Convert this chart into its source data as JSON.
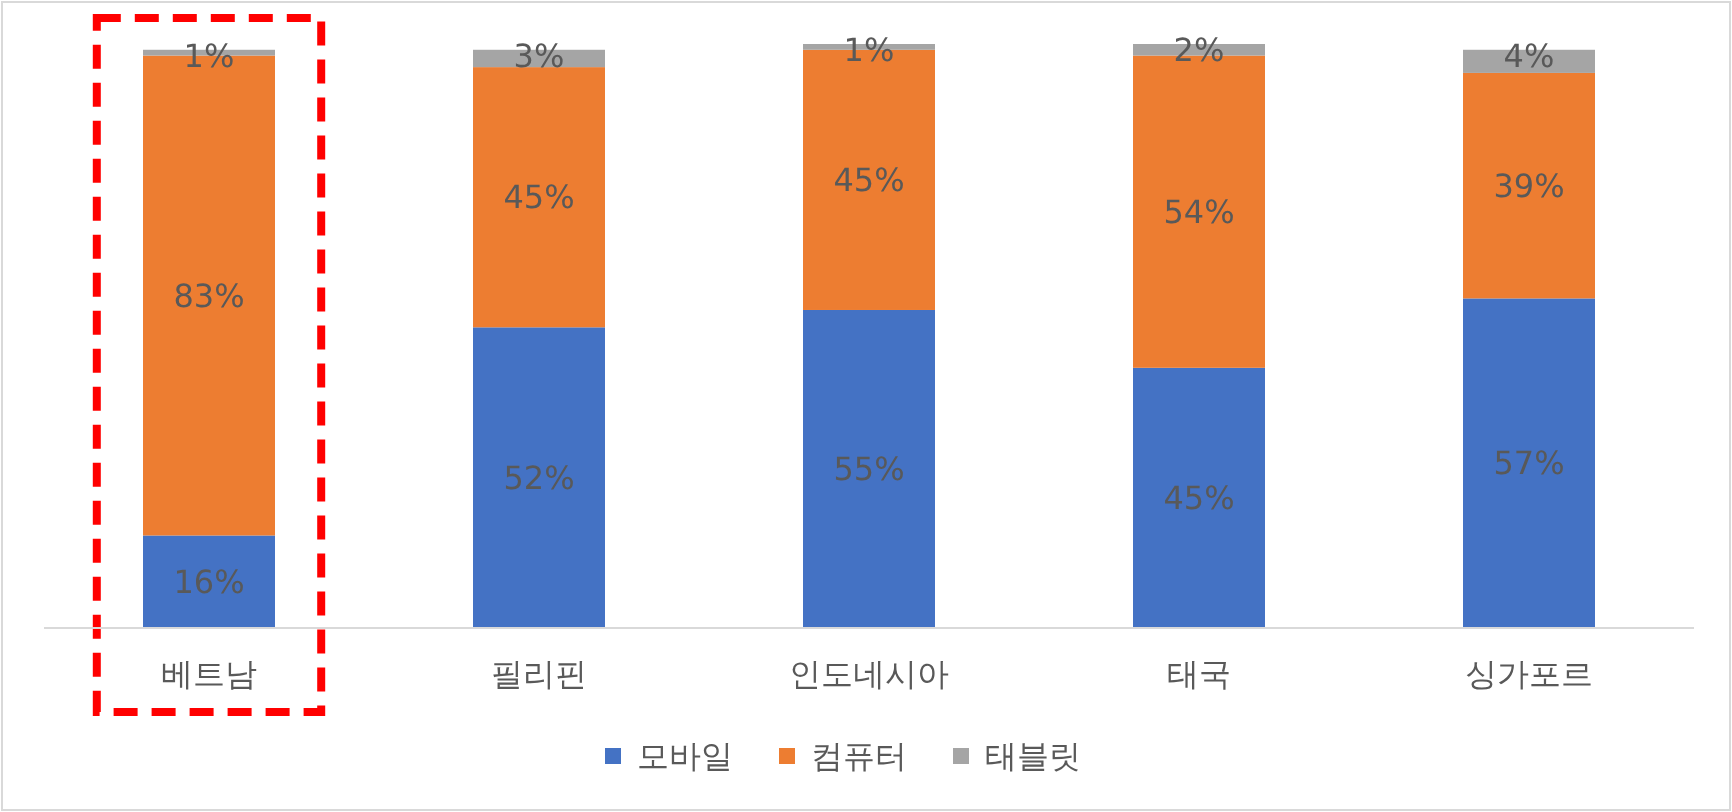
{
  "chart_data": {
    "type": "bar",
    "stacked": true,
    "legend": "bottom",
    "categories": [
      "베트남",
      "필리핀",
      "인도네시아",
      "태국",
      "싱가포르"
    ],
    "series": [
      {
        "name": "모바일",
        "color": "#4472c4",
        "values": [
          16,
          52,
          55,
          45,
          57
        ],
        "value_labels": [
          "16%",
          "52%",
          "55%",
          "45%",
          "57%"
        ]
      },
      {
        "name": "컴퓨터",
        "color": "#ed7d31",
        "values": [
          83,
          45,
          45,
          54,
          39
        ],
        "value_labels": [
          "83%",
          "45%",
          "45%",
          "54%",
          "39%"
        ]
      },
      {
        "name": "태블릿",
        "color": "#a5a5a5",
        "values": [
          1,
          3,
          1,
          2,
          4
        ],
        "value_labels": [
          "1%",
          "3%",
          "1%",
          "2%",
          "4%"
        ]
      }
    ]
  }
}
